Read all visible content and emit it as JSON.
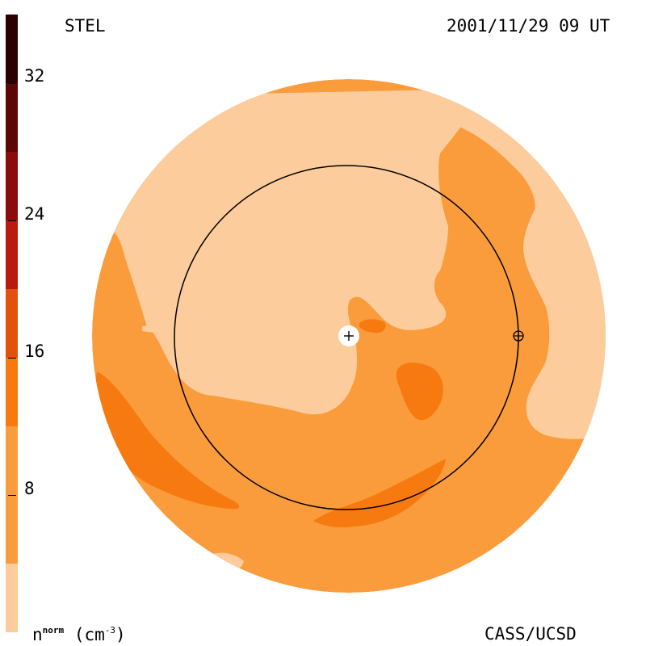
{
  "header": {
    "instrument": "STEL",
    "datetime": "2001/11/29 09 UT"
  },
  "footer": {
    "credit": "CASS/UCSD"
  },
  "colorbar": {
    "tick_labels": [
      "32",
      "24",
      "16",
      "8"
    ],
    "tick_values": [
      32,
      24,
      16,
      8
    ],
    "range": [
      0,
      36
    ],
    "units": {
      "symbol": "n",
      "superscript": "norm",
      "unit": "(cm",
      "unit_exp": "-3",
      "unit_close": ")"
    },
    "bands": [
      {
        "from": 0,
        "to": 4,
        "color": "#fccc9c"
      },
      {
        "from": 4,
        "to": 12,
        "color": "#fb9c3c"
      },
      {
        "from": 12,
        "to": 16,
        "color": "#f77a10"
      },
      {
        "from": 16,
        "to": 20,
        "color": "#e2520c"
      },
      {
        "from": 20,
        "to": 24,
        "color": "#bb1a10"
      },
      {
        "from": 24,
        "to": 28,
        "color": "#8c0c0c"
      },
      {
        "from": 28,
        "to": 32,
        "color": "#5c0606"
      },
      {
        "from": 32,
        "to": 36,
        "color": "#2c0000"
      }
    ]
  },
  "map": {
    "colors": {
      "light": "#fccc9c",
      "medium": "#fb9c3c",
      "dark": "#f77a10",
      "outline": "#000000",
      "sun": "#ffffff"
    },
    "markers": [
      "sun-marker",
      "earth-marker",
      "earth-orbit"
    ]
  }
}
